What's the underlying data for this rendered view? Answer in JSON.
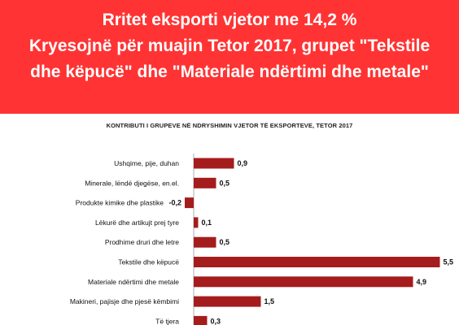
{
  "header": {
    "line1": "Rritet eksporti vjetor me 14,2 %",
    "line2": "Kryesojnë për muajin Tetor 2017, grupet \"Tekstile",
    "line3": "dhe këpucë\" dhe \"Materiale ndërtimi dhe metale\""
  },
  "colors": {
    "banner": "#ff3333",
    "bar": "#a51c1c"
  },
  "chart_data": {
    "type": "bar",
    "orientation": "horizontal",
    "title": "KONTRIBUTI I GRUPEVE NË NDRYSHIMIN VJETOR TË EKSPORTEVE, TETOR 2017",
    "categories": [
      "Ushqime, pije, duhan",
      "Minerale, lëndë djegëse, en.el.",
      "Produkte kimike dhe plastike",
      "Lëkurë dhe artikujt prej tyre",
      "Prodhime druri dhe letre",
      "Tekstile dhe këpucë",
      "Materiale ndërtimi dhe metale",
      "Makineri, pajisje dhe pjesë këmbimi",
      "Të tjera"
    ],
    "values": [
      0.9,
      0.5,
      -0.2,
      0.1,
      0.5,
      5.5,
      4.9,
      1.5,
      0.3
    ],
    "value_labels": [
      "0,9",
      "0,5",
      "-0,2",
      "0,1",
      "0,5",
      "5,5",
      "4,9",
      "1,5",
      "0,3"
    ],
    "grid": false,
    "legend": "none"
  }
}
